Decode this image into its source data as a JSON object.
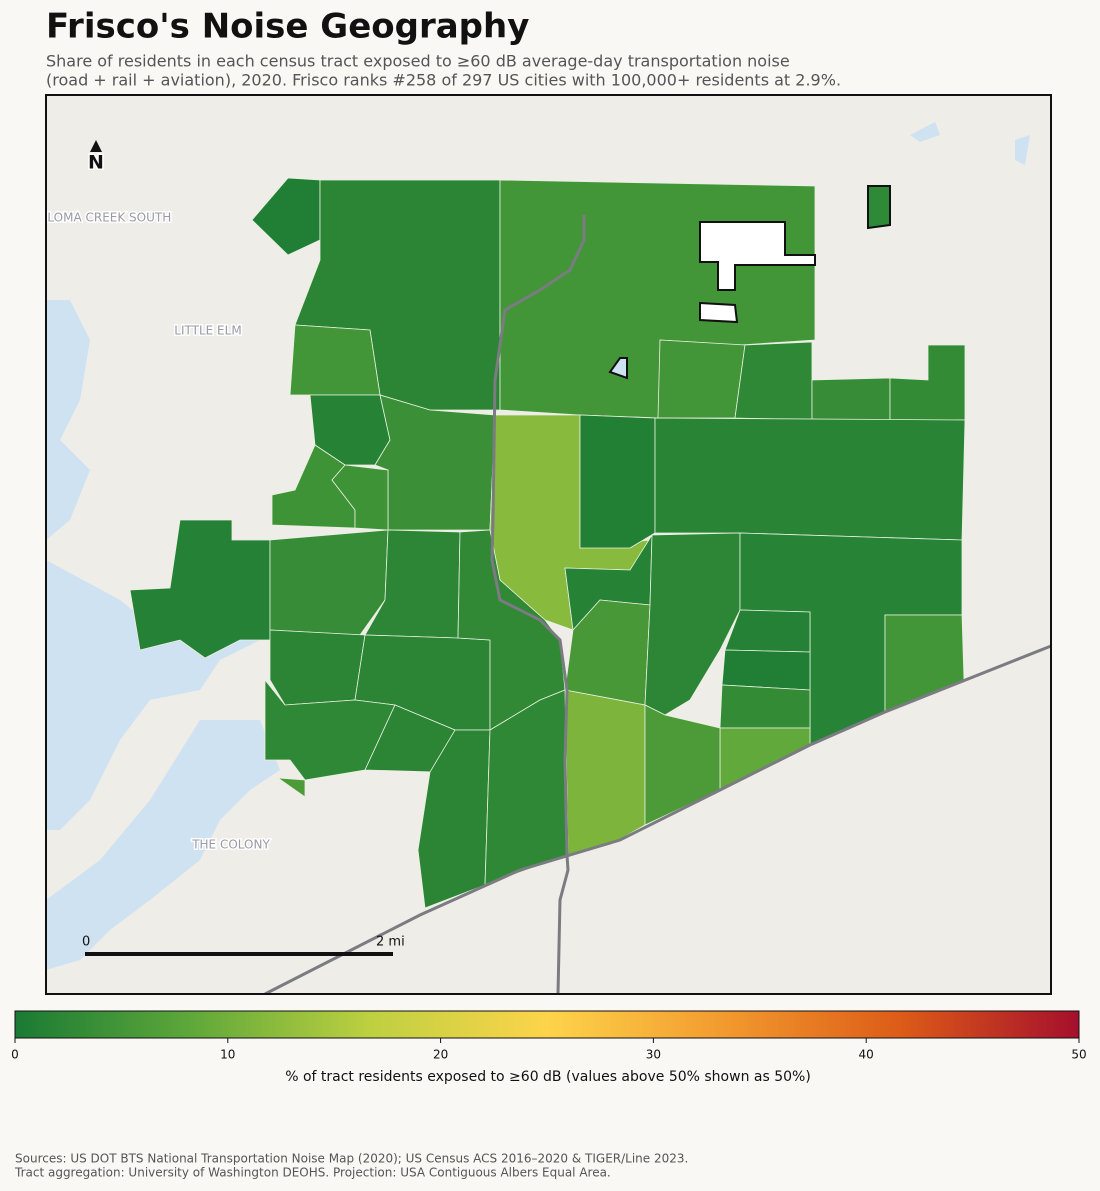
{
  "header": {
    "title": "Frisco's Noise Geography",
    "subtitle": [
      "Share of residents in each census tract exposed to ≥60 dB average-day transportation noise",
      "(road + rail + aviation), 2020. Frisco ranks #258 of 297 US cities with 100,000+ residents at 2.9%."
    ]
  },
  "map": {
    "places": [
      "PALOMA CREEK SOUTH",
      "LITTLE ELM",
      "THE COLONY"
    ],
    "north": "N",
    "scale": [
      "0",
      "2 mi"
    ],
    "tract_shares": [
      0.8,
      2,
      5,
      5,
      1.5,
      4,
      4.5,
      4.5,
      12,
      1,
      5,
      2.5,
      3.5,
      3,
      1.8,
      1.3,
      3.5,
      2.2,
      2,
      2,
      2.8,
      1.5,
      5.5,
      2.2,
      1.6,
      1.2,
      0.8,
      3,
      5,
      8.5,
      11,
      6,
      2.5,
      2,
      2,
      2.5,
      6
    ]
  },
  "colorbar": {
    "label": "% of tract residents exposed to ≥60 dB (values above 50% shown as 50%)",
    "lim": [
      0,
      50
    ],
    "ticks": [
      0,
      10,
      20,
      30,
      40,
      50
    ],
    "colors": [
      "#1a7a34",
      "#5fa83a",
      "#bdd040",
      "#fdd44b",
      "#f29a2e",
      "#dc5b18",
      "#a50f2c"
    ]
  },
  "footer": [
    "Sources: US DOT BTS National Transportation Noise Map (2020); US Census ACS 2016–2020 & TIGER/Line 2023.",
    "Tract aggregation: University of Washington DEOHS. Projection: USA Contiguous Albers Equal Area."
  ]
}
